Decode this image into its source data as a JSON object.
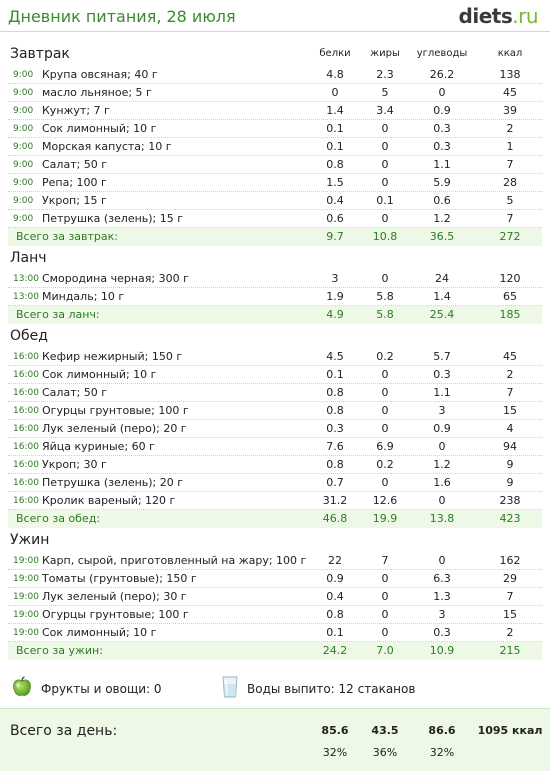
{
  "header": {
    "title": "Дневник питания, 28 июля",
    "logo_main": "diets",
    "logo_tld": ".ru"
  },
  "columns": {
    "protein": "белки",
    "fat": "жиры",
    "carbs": "углеводы",
    "kcal": "ккал"
  },
  "meals": [
    {
      "name": "Завтрак",
      "items": [
        {
          "time": "9:00",
          "food": "Крупа овсяная; 40 г",
          "p": "4.8",
          "f": "2.3",
          "c": "26.2",
          "k": "138"
        },
        {
          "time": "9:00",
          "food": "масло льняное; 5 г",
          "p": "0",
          "f": "5",
          "c": "0",
          "k": "45"
        },
        {
          "time": "9:00",
          "food": "Кунжут; 7 г",
          "p": "1.4",
          "f": "3.4",
          "c": "0.9",
          "k": "39"
        },
        {
          "time": "9:00",
          "food": "Сок лимонный; 10 г",
          "p": "0.1",
          "f": "0",
          "c": "0.3",
          "k": "2"
        },
        {
          "time": "9:00",
          "food": "Морская капуста; 10 г",
          "p": "0.1",
          "f": "0",
          "c": "0.3",
          "k": "1"
        },
        {
          "time": "9:00",
          "food": "Салат; 50 г",
          "p": "0.8",
          "f": "0",
          "c": "1.1",
          "k": "7"
        },
        {
          "time": "9:00",
          "food": "Репа; 100 г",
          "p": "1.5",
          "f": "0",
          "c": "5.9",
          "k": "28"
        },
        {
          "time": "9:00",
          "food": "Укроп; 15 г",
          "p": "0.4",
          "f": "0.1",
          "c": "0.6",
          "k": "5"
        },
        {
          "time": "9:00",
          "food": "Петрушка (зелень); 15 г",
          "p": "0.6",
          "f": "0",
          "c": "1.2",
          "k": "7"
        }
      ],
      "total": {
        "label": "Всего за завтрак:",
        "p": "9.7",
        "f": "10.8",
        "c": "36.5",
        "k": "272"
      }
    },
    {
      "name": "Ланч",
      "items": [
        {
          "time": "13:00",
          "food": "Смородина черная; 300 г",
          "p": "3",
          "f": "0",
          "c": "24",
          "k": "120"
        },
        {
          "time": "13:00",
          "food": "Миндаль; 10 г",
          "p": "1.9",
          "f": "5.8",
          "c": "1.4",
          "k": "65"
        }
      ],
      "total": {
        "label": "Всего за ланч:",
        "p": "4.9",
        "f": "5.8",
        "c": "25.4",
        "k": "185"
      }
    },
    {
      "name": "Обед",
      "items": [
        {
          "time": "16:00",
          "food": "Кефир нежирный; 150 г",
          "p": "4.5",
          "f": "0.2",
          "c": "5.7",
          "k": "45"
        },
        {
          "time": "16:00",
          "food": "Сок лимонный; 10 г",
          "p": "0.1",
          "f": "0",
          "c": "0.3",
          "k": "2"
        },
        {
          "time": "16:00",
          "food": "Салат; 50 г",
          "p": "0.8",
          "f": "0",
          "c": "1.1",
          "k": "7"
        },
        {
          "time": "16:00",
          "food": "Огурцы грунтовые; 100 г",
          "p": "0.8",
          "f": "0",
          "c": "3",
          "k": "15"
        },
        {
          "time": "16:00",
          "food": "Лук зеленый (перо); 20 г",
          "p": "0.3",
          "f": "0",
          "c": "0.9",
          "k": "4"
        },
        {
          "time": "16:00",
          "food": "Яйца куриные; 60 г",
          "p": "7.6",
          "f": "6.9",
          "c": "0",
          "k": "94"
        },
        {
          "time": "16:00",
          "food": "Укроп; 30 г",
          "p": "0.8",
          "f": "0.2",
          "c": "1.2",
          "k": "9"
        },
        {
          "time": "16:00",
          "food": "Петрушка (зелень); 20 г",
          "p": "0.7",
          "f": "0",
          "c": "1.6",
          "k": "9"
        },
        {
          "time": "16:00",
          "food": "Кролик вареный; 120 г",
          "p": "31.2",
          "f": "12.6",
          "c": "0",
          "k": "238"
        }
      ],
      "total": {
        "label": "Всего за обед:",
        "p": "46.8",
        "f": "19.9",
        "c": "13.8",
        "k": "423"
      }
    },
    {
      "name": "Ужин",
      "items": [
        {
          "time": "19:00",
          "food": "Карп, сырой, приготовленный на жару; 100 г",
          "p": "22",
          "f": "7",
          "c": "0",
          "k": "162"
        },
        {
          "time": "19:00",
          "food": "Томаты (грунтовые); 150 г",
          "p": "0.9",
          "f": "0",
          "c": "6.3",
          "k": "29"
        },
        {
          "time": "19:00",
          "food": "Лук зеленый (перо); 30 г",
          "p": "0.4",
          "f": "0",
          "c": "1.3",
          "k": "7"
        },
        {
          "time": "19:00",
          "food": "Огурцы грунтовые; 100 г",
          "p": "0.8",
          "f": "0",
          "c": "3",
          "k": "15"
        },
        {
          "time": "19:00",
          "food": "Сок лимонный; 10 г",
          "p": "0.1",
          "f": "0",
          "c": "0.3",
          "k": "2"
        }
      ],
      "total": {
        "label": "Всего за ужин:",
        "p": "24.2",
        "f": "7.0",
        "c": "10.9",
        "k": "215"
      }
    }
  ],
  "extras": {
    "fruits_label": "Фрукты и овощи: 0",
    "water_label": "Воды выпито: 12 стаканов",
    "fruit_icon": "green-apple-icon",
    "water_icon": "water-glass-icon"
  },
  "day_total": {
    "label": "Всего за день:",
    "protein": "85.6",
    "fat": "43.5",
    "carbs": "86.6",
    "kcal": "1095 ккал",
    "protein_pct": "32%",
    "fat_pct": "36%",
    "carbs_pct": "32%"
  },
  "colors": {
    "accent_green": "#3b8a2f",
    "total_bg": "#eef8e6"
  }
}
